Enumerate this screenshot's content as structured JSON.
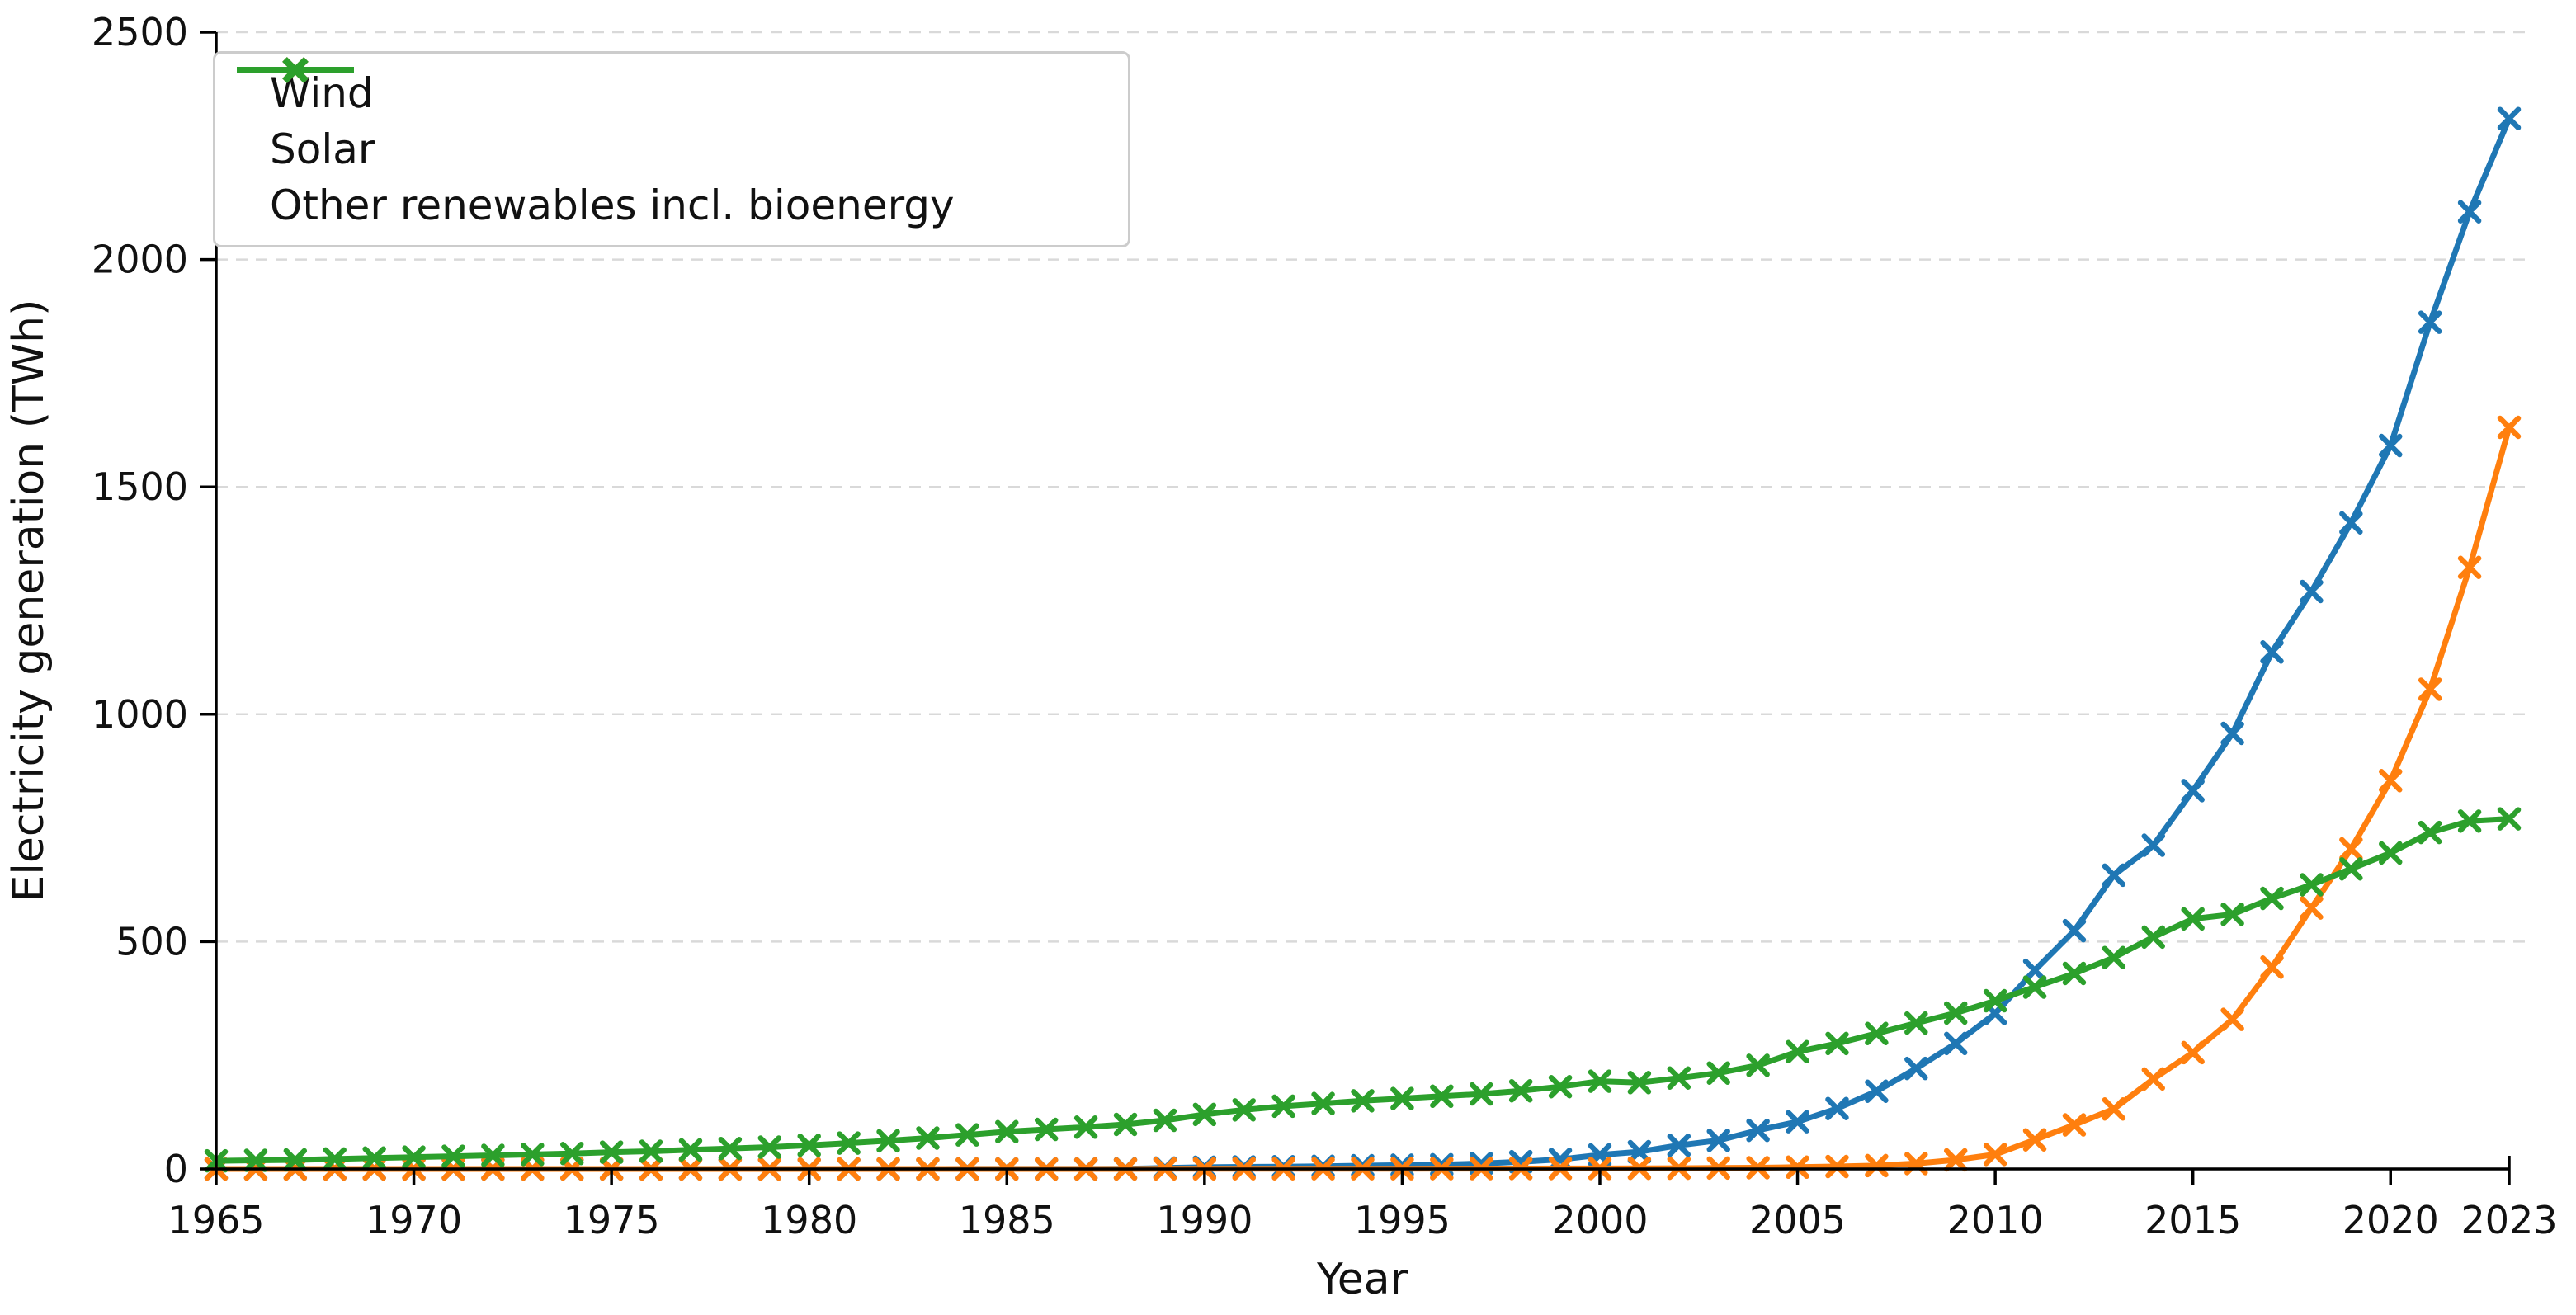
{
  "figure": {
    "title": "",
    "ylabel": "Electricity generation (TWh)",
    "xlabel": "Year"
  },
  "chart_data": {
    "type": "line",
    "title": "",
    "xlabel": "Year",
    "ylabel": "Electricity generation (TWh)",
    "xlim": [
      1965,
      2023
    ],
    "ylim": [
      0,
      2500
    ],
    "grid": "horizontal-dashed",
    "legend_position": "top-left",
    "marker": "x",
    "x": [
      1965,
      1966,
      1967,
      1968,
      1969,
      1970,
      1971,
      1972,
      1973,
      1974,
      1975,
      1976,
      1977,
      1978,
      1979,
      1980,
      1981,
      1982,
      1983,
      1984,
      1985,
      1986,
      1987,
      1988,
      1989,
      1990,
      1991,
      1992,
      1993,
      1994,
      1995,
      1996,
      1997,
      1998,
      1999,
      2000,
      2001,
      2002,
      2003,
      2004,
      2005,
      2006,
      2007,
      2008,
      2009,
      2010,
      2011,
      2012,
      2013,
      2014,
      2015,
      2016,
      2017,
      2018,
      2019,
      2020,
      2021,
      2022,
      2023
    ],
    "xticks": [
      1965,
      1970,
      1975,
      1980,
      1985,
      1990,
      1995,
      2000,
      2005,
      2010,
      2015,
      2020,
      2023
    ],
    "yticks": [
      0,
      500,
      1000,
      1500,
      2000,
      2500
    ],
    "series": [
      {
        "name": "Wind",
        "color": "#1f77b4",
        "values": [
          0,
          0,
          0,
          0,
          0,
          0,
          0,
          0,
          0,
          0,
          0,
          0,
          0,
          0,
          0,
          0,
          0,
          0,
          0,
          0.1,
          0.1,
          0.1,
          0.2,
          0.4,
          2.1,
          3.9,
          4.6,
          4.9,
          5.8,
          7.2,
          8.3,
          9.4,
          12,
          16,
          21,
          31,
          38,
          52,
          63,
          85,
          104,
          133,
          171,
          221,
          276,
          342,
          437,
          524,
          646,
          712,
          832,
          958,
          1137,
          1270,
          1421,
          1591,
          1862,
          2105,
          2310
        ]
      },
      {
        "name": "Solar",
        "color": "#ff7f0e",
        "values": [
          0,
          0,
          0,
          0,
          0,
          0,
          0,
          0,
          0,
          0,
          0,
          0,
          0,
          0,
          0,
          0,
          0,
          0,
          0,
          0,
          0,
          0,
          0,
          0,
          0.3,
          0.4,
          0.5,
          0.5,
          0.6,
          0.6,
          0.6,
          0.7,
          0.8,
          0.9,
          1,
          1.1,
          1.4,
          1.7,
          2.1,
          2.8,
          4,
          5.4,
          7.4,
          11.9,
          20,
          32,
          64,
          97,
          132,
          198,
          256,
          329,
          444,
          574,
          704,
          854,
          1055,
          1323,
          1631
        ]
      },
      {
        "name": "Other renewables incl. bioenergy",
        "color": "#2ca02c",
        "values": [
          18,
          19,
          20,
          22,
          24,
          26,
          28,
          30,
          32,
          34,
          37,
          39,
          42,
          45,
          48,
          52,
          57,
          62,
          68,
          75,
          82,
          87,
          92,
          98,
          107,
          120,
          130,
          138,
          144,
          150,
          155,
          160,
          165,
          172,
          181,
          193,
          190,
          200,
          211,
          228,
          258,
          276,
          298,
          321,
          343,
          370,
          400,
          430,
          465,
          510,
          550,
          560,
          595,
          625,
          660,
          695,
          740,
          765,
          770
        ]
      }
    ]
  },
  "style_colors": {
    "grid": "#d9d9d9",
    "axis": "#000000",
    "tick_text": "#111111",
    "legend_border": "#cccccc"
  }
}
